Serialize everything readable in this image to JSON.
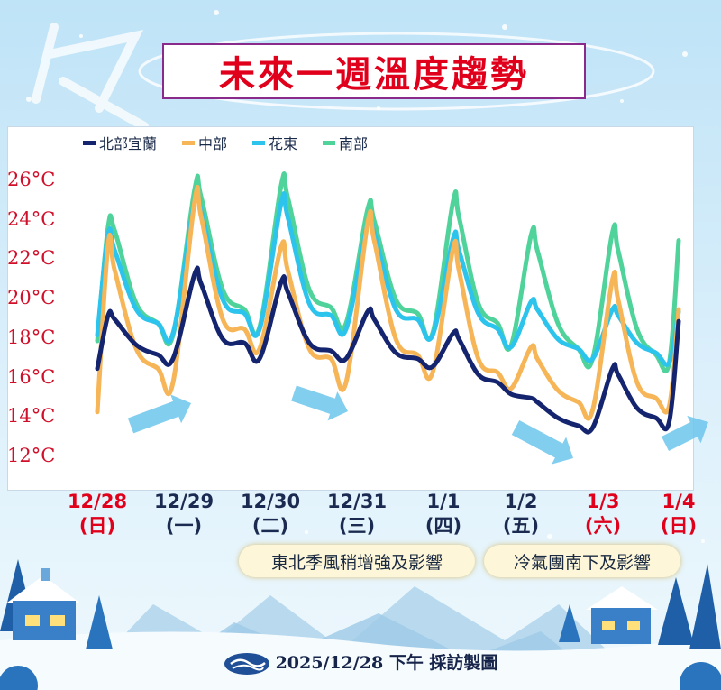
{
  "title": "未來一週溫度趨勢",
  "footer": "2025/12/28 下午 採訪製圖",
  "banners": [
    "東北季風稍增強及影響",
    "冷氣團南下及影響"
  ],
  "chart_data": {
    "type": "line",
    "title": "未來一週溫度趨勢",
    "xlabel": "",
    "ylabel": "",
    "ylim": [
      12,
      26
    ],
    "y_ticks": [
      "26°C",
      "24°C",
      "22°C",
      "20°C",
      "18°C",
      "16°C",
      "14°C",
      "12°C"
    ],
    "x_ticks": [
      {
        "date": "12/28",
        "day": "(日)",
        "color": "#e0001b"
      },
      {
        "date": "12/29",
        "day": "(一)",
        "color": "#1b2a50"
      },
      {
        "date": "12/30",
        "day": "(二)",
        "color": "#1b2a50"
      },
      {
        "date": "12/31",
        "day": "(三)",
        "color": "#1b2a50"
      },
      {
        "date": "1/1",
        "day": "(四)",
        "color": "#1b2a50"
      },
      {
        "date": "1/2",
        "day": "(五)",
        "color": "#1b2a50"
      },
      {
        "date": "1/3",
        "day": "(六)",
        "color": "#e0001b"
      },
      {
        "date": "1/4",
        "day": "(日)",
        "color": "#e0001b"
      }
    ],
    "legend_position": "top-left",
    "x_days": [
      0,
      0.125,
      0.2,
      0.45,
      0.7,
      0.875,
      1.125,
      1.2,
      1.45,
      1.7,
      1.875,
      2.125,
      2.2,
      2.45,
      2.7,
      2.875,
      3.125,
      3.2,
      3.45,
      3.7,
      3.875,
      4.125,
      4.2,
      4.45,
      4.7,
      4.875,
      5.125,
      5.2,
      5.45,
      5.7,
      5.875,
      6.125,
      6.2,
      6.45,
      6.7,
      6.875,
      7.0
    ],
    "series": [
      {
        "name": "北部宜蘭",
        "color": "#14246e",
        "values": [
          16.5,
          19.2,
          19.0,
          17.7,
          17.2,
          17.0,
          21.3,
          20.8,
          18.0,
          17.8,
          17.0,
          20.9,
          20.4,
          17.8,
          17.4,
          17.0,
          19.4,
          19.0,
          17.3,
          17.0,
          16.6,
          18.3,
          18.0,
          16.2,
          15.8,
          15.2,
          15.0,
          14.8,
          14.0,
          13.6,
          13.5,
          16.5,
          16.2,
          14.5,
          14.0,
          13.8,
          18.9
        ]
      },
      {
        "name": "中部",
        "color": "#f6b557",
        "values": [
          14.3,
          22.8,
          21.5,
          17.5,
          16.5,
          15.8,
          25.0,
          24.2,
          19.0,
          18.5,
          17.5,
          22.7,
          21.5,
          17.5,
          17.0,
          15.8,
          23.9,
          23.0,
          18.0,
          17.2,
          16.3,
          22.6,
          21.5,
          17.0,
          16.3,
          15.5,
          17.6,
          17.0,
          15.4,
          14.8,
          14.4,
          21.0,
          20.0,
          15.8,
          15.0,
          14.6,
          19.5
        ]
      },
      {
        "name": "花東",
        "color": "#2cc4ec",
        "values": [
          18.2,
          23.3,
          22.5,
          19.5,
          18.8,
          18.3,
          25.0,
          24.5,
          20.0,
          19.3,
          18.5,
          24.9,
          24.2,
          19.8,
          19.2,
          18.5,
          23.9,
          23.4,
          19.5,
          19.0,
          18.2,
          23.1,
          22.5,
          19.3,
          18.5,
          17.6,
          19.9,
          19.5,
          18.0,
          17.5,
          17.0,
          19.5,
          19.2,
          17.8,
          17.3,
          16.8,
          19.4
        ]
      },
      {
        "name": "南部",
        "color": "#4fd39a",
        "values": [
          17.9,
          23.7,
          23.5,
          19.8,
          18.8,
          18.2,
          25.6,
          25.2,
          20.5,
          19.5,
          18.6,
          25.8,
          25.2,
          20.5,
          19.6,
          18.8,
          24.6,
          24.0,
          20.0,
          19.3,
          18.3,
          25.0,
          24.2,
          19.8,
          18.8,
          17.7,
          23.3,
          22.5,
          18.8,
          17.5,
          17.0,
          23.4,
          22.5,
          18.5,
          17.2,
          16.8,
          23.0
        ]
      }
    ]
  }
}
